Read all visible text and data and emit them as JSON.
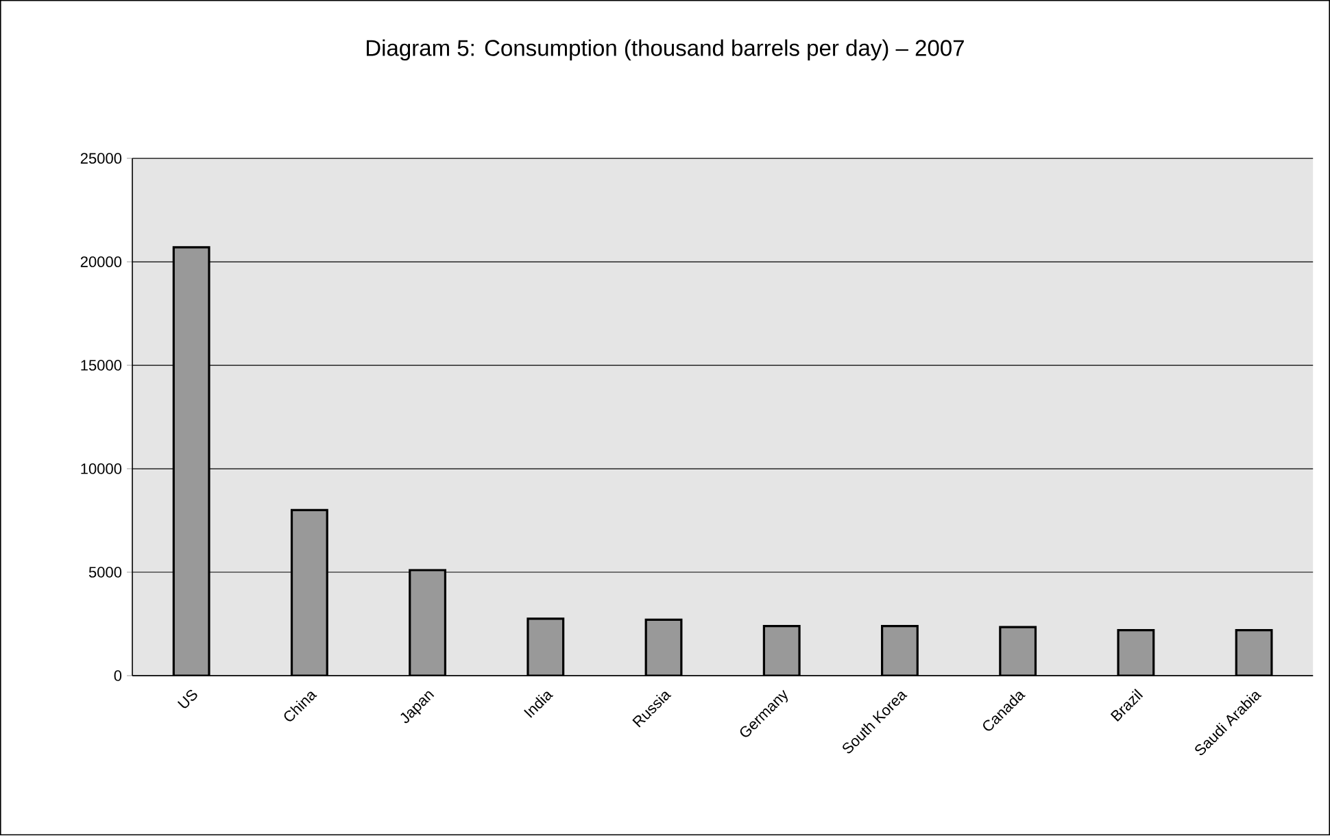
{
  "chart_data": {
    "type": "bar",
    "title": "Diagram 5: Consumption (thousand barrels per day) – 2007",
    "categories": [
      "US",
      "China",
      "Japan",
      "India",
      "Russia",
      "Germany",
      "South Korea",
      "Canada",
      "Brazil",
      "Saudi Arabia"
    ],
    "values": [
      20700,
      8000,
      5100,
      2750,
      2700,
      2400,
      2400,
      2350,
      2200,
      2200
    ],
    "color": "#999999",
    "ylim": [
      0,
      25000
    ],
    "yticks": [
      0,
      5000,
      10000,
      15000,
      20000,
      25000
    ],
    "grid": "y"
  }
}
